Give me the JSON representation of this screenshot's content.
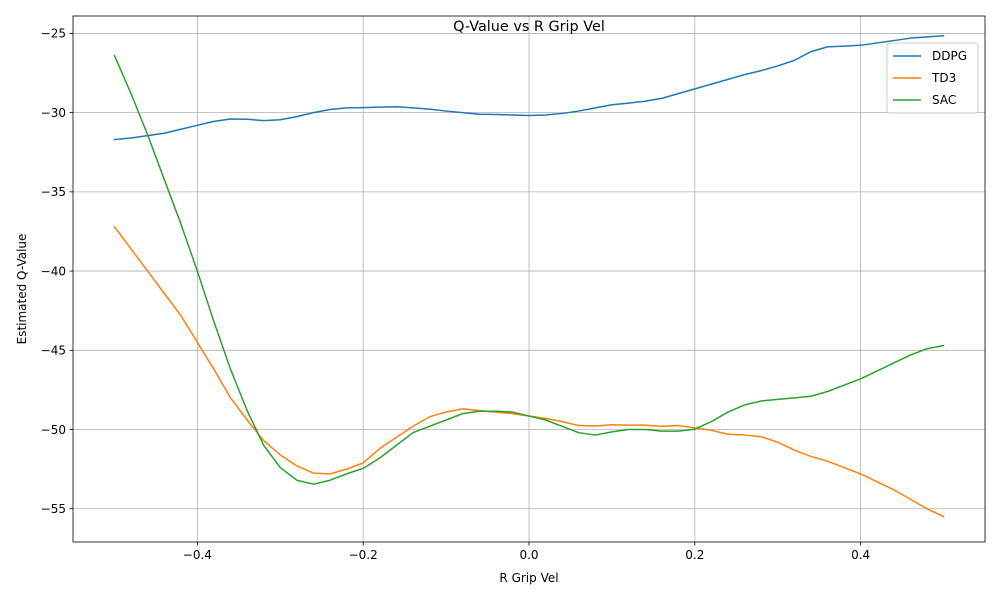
{
  "chart_data": {
    "type": "line",
    "title": "Q-Value vs R Grip Vel",
    "xlabel": "R Grip Vel",
    "ylabel": "Estimated Q-Value",
    "xlim": [
      -0.55,
      0.55
    ],
    "ylim": [
      -57.1,
      -23.9
    ],
    "grid": true,
    "legend_position": "top-right",
    "x_ticks": [
      -0.4,
      -0.2,
      0.0,
      0.2,
      0.4
    ],
    "x_tick_labels": [
      "−0.4",
      "−0.2",
      "0.0",
      "0.2",
      "0.4"
    ],
    "y_ticks": [
      -55,
      -50,
      -45,
      -40,
      -35,
      -30,
      -25
    ],
    "y_tick_labels": [
      "−55",
      "−50",
      "−45",
      "−40",
      "−35",
      "−30",
      "−25"
    ],
    "series": [
      {
        "name": "DDPG",
        "color": "#1f77b4",
        "points": [
          [
            -0.5,
            -31.7
          ],
          [
            -0.48,
            -31.6
          ],
          [
            -0.46,
            -31.45
          ],
          [
            -0.44,
            -31.3
          ],
          [
            -0.42,
            -31.05
          ],
          [
            -0.4,
            -30.8
          ],
          [
            -0.38,
            -30.55
          ],
          [
            -0.36,
            -30.4
          ],
          [
            -0.34,
            -30.42
          ],
          [
            -0.32,
            -30.5
          ],
          [
            -0.3,
            -30.45
          ],
          [
            -0.28,
            -30.25
          ],
          [
            -0.26,
            -30.0
          ],
          [
            -0.24,
            -29.8
          ],
          [
            -0.22,
            -29.7
          ],
          [
            -0.2,
            -29.68
          ],
          [
            -0.18,
            -29.65
          ],
          [
            -0.16,
            -29.63
          ],
          [
            -0.14,
            -29.7
          ],
          [
            -0.12,
            -29.78
          ],
          [
            -0.1,
            -29.9
          ],
          [
            -0.08,
            -30.0
          ],
          [
            -0.06,
            -30.1
          ],
          [
            -0.04,
            -30.12
          ],
          [
            -0.02,
            -30.15
          ],
          [
            0.0,
            -30.18
          ],
          [
            0.02,
            -30.15
          ],
          [
            0.04,
            -30.05
          ],
          [
            0.06,
            -29.9
          ],
          [
            0.08,
            -29.7
          ],
          [
            0.1,
            -29.5
          ],
          [
            0.12,
            -29.4
          ],
          [
            0.14,
            -29.28
          ],
          [
            0.16,
            -29.1
          ],
          [
            0.18,
            -28.8
          ],
          [
            0.2,
            -28.5
          ],
          [
            0.22,
            -28.2
          ],
          [
            0.24,
            -27.9
          ],
          [
            0.26,
            -27.6
          ],
          [
            0.28,
            -27.35
          ],
          [
            0.3,
            -27.05
          ],
          [
            0.32,
            -26.7
          ],
          [
            0.34,
            -26.15
          ],
          [
            0.36,
            -25.85
          ],
          [
            0.38,
            -25.8
          ],
          [
            0.4,
            -25.75
          ],
          [
            0.42,
            -25.6
          ],
          [
            0.44,
            -25.45
          ],
          [
            0.46,
            -25.3
          ],
          [
            0.48,
            -25.22
          ],
          [
            0.5,
            -25.15
          ]
        ]
      },
      {
        "name": "TD3",
        "color": "#ff7f0e",
        "points": [
          [
            -0.5,
            -37.2
          ],
          [
            -0.48,
            -38.6
          ],
          [
            -0.46,
            -40.0
          ],
          [
            -0.44,
            -41.4
          ],
          [
            -0.42,
            -42.8
          ],
          [
            -0.4,
            -44.5
          ],
          [
            -0.38,
            -46.2
          ],
          [
            -0.36,
            -48.0
          ],
          [
            -0.34,
            -49.4
          ],
          [
            -0.32,
            -50.7
          ],
          [
            -0.3,
            -51.6
          ],
          [
            -0.28,
            -52.3
          ],
          [
            -0.26,
            -52.75
          ],
          [
            -0.24,
            -52.8
          ],
          [
            -0.22,
            -52.5
          ],
          [
            -0.2,
            -52.1
          ],
          [
            -0.18,
            -51.2
          ],
          [
            -0.16,
            -50.5
          ],
          [
            -0.14,
            -49.8
          ],
          [
            -0.12,
            -49.2
          ],
          [
            -0.1,
            -48.9
          ],
          [
            -0.08,
            -48.7
          ],
          [
            -0.06,
            -48.8
          ],
          [
            -0.04,
            -48.9
          ],
          [
            -0.02,
            -49.0
          ],
          [
            0.0,
            -49.15
          ],
          [
            0.02,
            -49.3
          ],
          [
            0.04,
            -49.5
          ],
          [
            0.06,
            -49.75
          ],
          [
            0.08,
            -49.78
          ],
          [
            0.1,
            -49.7
          ],
          [
            0.12,
            -49.72
          ],
          [
            0.14,
            -49.72
          ],
          [
            0.16,
            -49.8
          ],
          [
            0.18,
            -49.75
          ],
          [
            0.2,
            -49.9
          ],
          [
            0.22,
            -50.05
          ],
          [
            0.24,
            -50.3
          ],
          [
            0.26,
            -50.35
          ],
          [
            0.28,
            -50.45
          ],
          [
            0.3,
            -50.8
          ],
          [
            0.32,
            -51.3
          ],
          [
            0.34,
            -51.7
          ],
          [
            0.36,
            -52.0
          ],
          [
            0.38,
            -52.4
          ],
          [
            0.4,
            -52.8
          ],
          [
            0.42,
            -53.3
          ],
          [
            0.44,
            -53.8
          ],
          [
            0.46,
            -54.4
          ],
          [
            0.48,
            -55.0
          ],
          [
            0.5,
            -55.5
          ]
        ]
      },
      {
        "name": "SAC",
        "color": "#2ca02c",
        "points": [
          [
            -0.5,
            -26.4
          ],
          [
            -0.48,
            -28.8
          ],
          [
            -0.46,
            -31.4
          ],
          [
            -0.44,
            -34.2
          ],
          [
            -0.42,
            -37.0
          ],
          [
            -0.4,
            -40.0
          ],
          [
            -0.38,
            -43.2
          ],
          [
            -0.36,
            -46.2
          ],
          [
            -0.34,
            -48.8
          ],
          [
            -0.32,
            -51.0
          ],
          [
            -0.3,
            -52.4
          ],
          [
            -0.28,
            -53.2
          ],
          [
            -0.26,
            -53.45
          ],
          [
            -0.24,
            -53.2
          ],
          [
            -0.22,
            -52.8
          ],
          [
            -0.2,
            -52.45
          ],
          [
            -0.18,
            -51.8
          ],
          [
            -0.16,
            -51.0
          ],
          [
            -0.14,
            -50.2
          ],
          [
            -0.12,
            -49.8
          ],
          [
            -0.1,
            -49.4
          ],
          [
            -0.08,
            -49.0
          ],
          [
            -0.06,
            -48.85
          ],
          [
            -0.04,
            -48.85
          ],
          [
            -0.02,
            -48.9
          ],
          [
            0.0,
            -49.15
          ],
          [
            0.02,
            -49.4
          ],
          [
            0.04,
            -49.8
          ],
          [
            0.06,
            -50.2
          ],
          [
            0.08,
            -50.35
          ],
          [
            0.1,
            -50.15
          ],
          [
            0.12,
            -50.0
          ],
          [
            0.14,
            -50.0
          ],
          [
            0.16,
            -50.1
          ],
          [
            0.18,
            -50.1
          ],
          [
            0.2,
            -49.98
          ],
          [
            0.22,
            -49.5
          ],
          [
            0.24,
            -48.9
          ],
          [
            0.26,
            -48.45
          ],
          [
            0.28,
            -48.2
          ],
          [
            0.3,
            -48.1
          ],
          [
            0.32,
            -48.0
          ],
          [
            0.34,
            -47.9
          ],
          [
            0.36,
            -47.6
          ],
          [
            0.38,
            -47.2
          ],
          [
            0.4,
            -46.8
          ],
          [
            0.42,
            -46.3
          ],
          [
            0.44,
            -45.8
          ],
          [
            0.46,
            -45.3
          ],
          [
            0.48,
            -44.9
          ],
          [
            0.5,
            -44.7
          ]
        ]
      }
    ]
  }
}
